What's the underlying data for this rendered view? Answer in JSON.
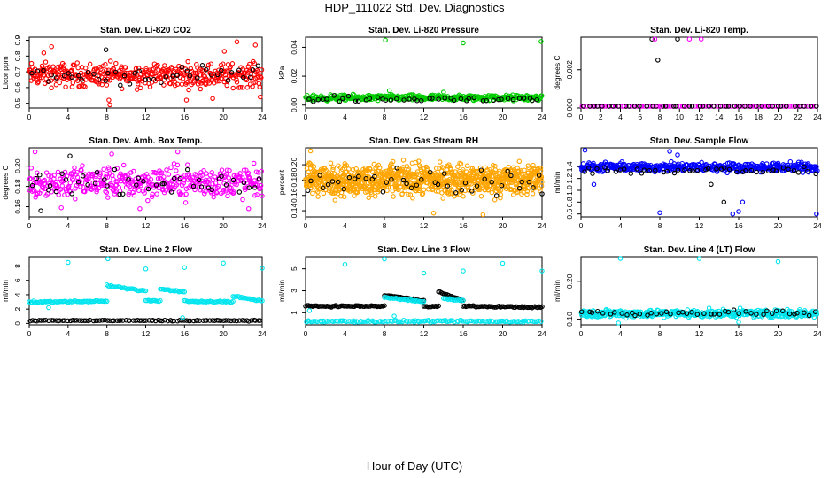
{
  "figure": {
    "title": "HDP_111022  Std. Dev. Diagnostics",
    "xlabel": "Hour of Day (UTC)"
  },
  "colors": {
    "red": "#ff0000",
    "green": "#00cc00",
    "magenta": "#ff00ff",
    "orange": "#ffa500",
    "blue": "#0000ff",
    "cyan": "#00e5ee",
    "black": "#000000"
  },
  "chart_data": [
    {
      "type": "scatter",
      "title": "Stan. Dev. Li-820 CO2",
      "ylabel": "Licor ppm",
      "x_ticks": [
        "0",
        "4",
        "8",
        "12",
        "16",
        "20",
        "24"
      ],
      "xlim": [
        0,
        24
      ],
      "y_ticks": [
        "0.5",
        "0.6",
        "0.7",
        "0.8",
        "0.9"
      ],
      "ylim": [
        0.47,
        0.92
      ],
      "series": [
        {
          "name": "all",
          "color": "red",
          "band": [
            0.57,
            0.79
          ],
          "n": 420
        },
        {
          "name": "highlight",
          "color": "black",
          "band": [
            0.59,
            0.76
          ],
          "n": 45
        }
      ],
      "outliers": [
        [
          1.5,
          0.82,
          "red"
        ],
        [
          2.3,
          0.86,
          "red"
        ],
        [
          7.9,
          0.84,
          "black"
        ],
        [
          8.2,
          0.52,
          "red"
        ],
        [
          8.3,
          0.49,
          "red"
        ],
        [
          20.1,
          0.83,
          "red"
        ],
        [
          21.4,
          0.89,
          "red"
        ],
        [
          23.3,
          0.87,
          "red"
        ],
        [
          23.8,
          0.54,
          "red"
        ],
        [
          16.2,
          0.52,
          "red"
        ],
        [
          18.9,
          0.53,
          "red"
        ]
      ]
    },
    {
      "type": "scatter",
      "title": "Stan. Dev. Li-820 Pressure",
      "ylabel": "kPa",
      "x_ticks": [
        "0",
        "4",
        "8",
        "12",
        "16",
        "20",
        "24"
      ],
      "xlim": [
        0,
        24
      ],
      "y_ticks": [
        "0.00",
        "0.02",
        "0.04"
      ],
      "ylim": [
        -0.002,
        0.047
      ],
      "series": [
        {
          "name": "all",
          "color": "green",
          "band": [
            0.002,
            0.008
          ],
          "n": 400
        },
        {
          "name": "highlight",
          "color": "black",
          "band": [
            0.001,
            0.007
          ],
          "n": 45
        }
      ],
      "outliers": [
        [
          8.1,
          0.045,
          "green"
        ],
        [
          16.0,
          0.043,
          "green"
        ],
        [
          23.9,
          0.044,
          "green"
        ],
        [
          8.5,
          0.01,
          "green"
        ],
        [
          14.0,
          0.009,
          "green"
        ]
      ]
    },
    {
      "type": "scatter",
      "title": "Stan. Dev. Li-820 Temp.",
      "ylabel": "degrees C",
      "x_ticks": [
        "0",
        "2",
        "4",
        "6",
        "8",
        "10",
        "12",
        "14",
        "16",
        "18",
        "20",
        "22",
        "24"
      ],
      "xlim": [
        0,
        24
      ],
      "y_ticks": [
        "0.000",
        "0.002"
      ],
      "ylim": [
        0,
        0.0037
      ],
      "series": [
        {
          "name": "all",
          "color": "magenta",
          "band": [
            0.0,
            0.0
          ],
          "n": 90
        },
        {
          "name": "highlight",
          "color": "black",
          "band": [
            0.0,
            0.0
          ],
          "n": 45
        }
      ],
      "outliers": [
        [
          7.2,
          0.0036,
          "black"
        ],
        [
          7.5,
          0.0036,
          "magenta"
        ],
        [
          9.8,
          0.0036,
          "black"
        ],
        [
          11.0,
          0.0036,
          "magenta"
        ],
        [
          12.2,
          0.0036,
          "magenta"
        ],
        [
          7.8,
          0.0025,
          "black"
        ],
        [
          8.0,
          0.0,
          "magenta"
        ]
      ]
    },
    {
      "type": "scatter",
      "title": "Stan. Dev. Amb. Box Temp.",
      "ylabel": "degrees C",
      "x_ticks": [
        "0",
        "4",
        "8",
        "12",
        "16",
        "20",
        "24"
      ],
      "xlim": [
        0,
        24
      ],
      "y_ticks": [
        "0.16",
        "0.18",
        "0.20"
      ],
      "ylim": [
        0.15,
        0.218
      ],
      "series": [
        {
          "name": "all",
          "color": "magenta",
          "band": [
            0.161,
            0.207
          ],
          "n": 430
        },
        {
          "name": "highlight",
          "color": "black",
          "band": [
            0.168,
            0.2
          ],
          "n": 45
        }
      ],
      "outliers": [
        [
          0.6,
          0.214,
          "magenta"
        ],
        [
          4.2,
          0.21,
          "black"
        ],
        [
          1.2,
          0.156,
          "black"
        ],
        [
          3.3,
          0.159,
          "magenta"
        ],
        [
          8.5,
          0.212,
          "magenta"
        ],
        [
          15.3,
          0.214,
          "magenta"
        ],
        [
          22.6,
          0.158,
          "magenta"
        ],
        [
          11.4,
          0.158,
          "magenta"
        ]
      ]
    },
    {
      "type": "scatter",
      "title": "Stan. Dev. Gas Stream RH",
      "ylabel": "percent",
      "x_ticks": [
        "0",
        "4",
        "8",
        "12",
        "16",
        "20",
        "24"
      ],
      "xlim": [
        0,
        24
      ],
      "y_ticks": [
        "0.14",
        "0.16",
        "0.18",
        "0.20"
      ],
      "ylim": [
        0.132,
        0.222
      ],
      "series": [
        {
          "name": "all",
          "color": "orange",
          "band": [
            0.15,
            0.21
          ],
          "n": 950
        },
        {
          "name": "highlight",
          "color": "black",
          "band": [
            0.155,
            0.205
          ],
          "n": 45
        }
      ],
      "outliers": [
        [
          0.5,
          0.218,
          "orange"
        ],
        [
          13.0,
          0.137,
          "orange"
        ],
        [
          18.0,
          0.135,
          "orange"
        ],
        [
          24.0,
          0.162,
          "black"
        ]
      ]
    },
    {
      "type": "scatter",
      "title": "Stan. Dev. Sample Flow",
      "ylabel": "ml/min",
      "x_ticks": [
        "0",
        "4",
        "8",
        "12",
        "16",
        "20",
        "24"
      ],
      "xlim": [
        0,
        24
      ],
      "y_ticks": [
        "0.6",
        "0.8",
        "1.0",
        "1.2",
        "1.4"
      ],
      "ylim": [
        0.55,
        1.72
      ],
      "series": [
        {
          "name": "all",
          "color": "blue",
          "band": [
            1.28,
            1.5
          ],
          "n": 460
        },
        {
          "name": "highlight",
          "color": "black",
          "band": [
            1.22,
            1.45
          ],
          "n": 45
        }
      ],
      "outliers": [
        [
          0.4,
          1.68,
          "blue"
        ],
        [
          9.0,
          1.66,
          "blue"
        ],
        [
          9.8,
          1.6,
          "blue"
        ],
        [
          8.0,
          0.62,
          "blue"
        ],
        [
          15.4,
          0.6,
          "blue"
        ],
        [
          16.0,
          0.64,
          "blue"
        ],
        [
          14.5,
          0.8,
          "black"
        ],
        [
          16.4,
          0.8,
          "blue"
        ],
        [
          13.2,
          1.1,
          "black"
        ],
        [
          23.9,
          0.6,
          "blue"
        ],
        [
          1.3,
          1.1,
          "blue"
        ]
      ]
    },
    {
      "type": "scatter",
      "title": "Stan. Dev. Line 2 Flow",
      "ylabel": "ml/min",
      "x_ticks": [
        "0",
        "4",
        "8",
        "12",
        "16",
        "20",
        "24"
      ],
      "xlim": [
        0,
        24
      ],
      "y_ticks": [
        "0",
        "2",
        "4",
        "6",
        "8"
      ],
      "ylim": [
        -0.2,
        9.3
      ],
      "segments": [
        {
          "color": "cyan",
          "x": [
            0,
            8
          ],
          "level": [
            3.0,
            3.1
          ]
        },
        {
          "color": "cyan",
          "x": [
            8,
            12
          ],
          "level": [
            5.3,
            4.5
          ]
        },
        {
          "color": "cyan",
          "x": [
            12,
            13.5
          ],
          "level": [
            3.2,
            3.1
          ]
        },
        {
          "color": "cyan",
          "x": [
            13.5,
            16
          ],
          "level": [
            4.8,
            4.4
          ]
        },
        {
          "color": "cyan",
          "x": [
            16,
            21
          ],
          "level": [
            3.1,
            3.0
          ]
        },
        {
          "color": "cyan",
          "x": [
            21,
            24
          ],
          "level": [
            3.8,
            3.1
          ]
        }
      ],
      "series": [
        {
          "name": "baseline",
          "color": "black",
          "band": [
            0.3,
            0.5
          ],
          "n": 100
        }
      ],
      "outliers": [
        [
          4.0,
          8.5,
          "cyan"
        ],
        [
          8.1,
          9.0,
          "cyan"
        ],
        [
          12.0,
          7.6,
          "cyan"
        ],
        [
          16.0,
          7.8,
          "cyan"
        ],
        [
          20.0,
          8.4,
          "cyan"
        ],
        [
          24.0,
          7.7,
          "cyan"
        ],
        [
          2.0,
          2.2,
          "cyan"
        ],
        [
          15.8,
          0.8,
          "cyan"
        ]
      ]
    },
    {
      "type": "scatter",
      "title": "Stan. Dev. Line 3 Flow",
      "ylabel": "ml/min",
      "x_ticks": [
        "0",
        "4",
        "8",
        "12",
        "16",
        "20",
        "24"
      ],
      "xlim": [
        0,
        24
      ],
      "y_ticks": [
        "1",
        "3",
        "5"
      ],
      "ylim": [
        -0.1,
        6.1
      ],
      "segments": [
        {
          "color": "black",
          "x": [
            0,
            8
          ],
          "level": [
            1.6,
            1.6
          ]
        },
        {
          "color": "black",
          "x": [
            8,
            12
          ],
          "level": [
            2.6,
            2.1
          ]
        },
        {
          "color": "black",
          "x": [
            12,
            13.5
          ],
          "level": [
            1.6,
            1.6
          ]
        },
        {
          "color": "black",
          "x": [
            13.5,
            16
          ],
          "level": [
            2.9,
            2.1
          ]
        },
        {
          "color": "black",
          "x": [
            16,
            24
          ],
          "level": [
            1.6,
            1.5
          ]
        },
        {
          "color": "cyan",
          "x": [
            8,
            12
          ],
          "level": [
            2.4,
            2.0
          ]
        },
        {
          "color": "cyan",
          "x": [
            14,
            16
          ],
          "level": [
            2.3,
            2.1
          ]
        }
      ],
      "series": [
        {
          "name": "baseline",
          "color": "cyan",
          "band": [
            0.1,
            0.35
          ],
          "n": 140
        }
      ],
      "outliers": [
        [
          4.0,
          5.4,
          "cyan"
        ],
        [
          8.0,
          5.9,
          "cyan"
        ],
        [
          12.0,
          4.6,
          "cyan"
        ],
        [
          16.0,
          4.8,
          "cyan"
        ],
        [
          20.0,
          5.5,
          "cyan"
        ],
        [
          24.0,
          4.8,
          "cyan"
        ],
        [
          0.4,
          1.2,
          "cyan"
        ],
        [
          9.0,
          0.7,
          "cyan"
        ]
      ]
    },
    {
      "type": "scatter",
      "title": "Stan. Dev. Line 4 (LT) Flow",
      "ylabel": "ml/min",
      "x_ticks": [
        "0",
        "4",
        "8",
        "12",
        "16",
        "20",
        "24"
      ],
      "xlim": [
        0,
        24
      ],
      "y_ticks": [
        "0.10",
        "0.20"
      ],
      "ylim": [
        0.085,
        0.265
      ],
      "series": [
        {
          "name": "all",
          "color": "cyan",
          "band": [
            0.1,
            0.13
          ],
          "n": 460
        },
        {
          "name": "highlight",
          "color": "black",
          "band": [
            0.105,
            0.128
          ],
          "n": 45
        }
      ],
      "outliers": [
        [
          4.0,
          0.262,
          "cyan"
        ],
        [
          12.0,
          0.26,
          "cyan"
        ],
        [
          20.0,
          0.252,
          "cyan"
        ],
        [
          16.0,
          0.092,
          "cyan"
        ],
        [
          3.8,
          0.09,
          "cyan"
        ]
      ]
    }
  ]
}
